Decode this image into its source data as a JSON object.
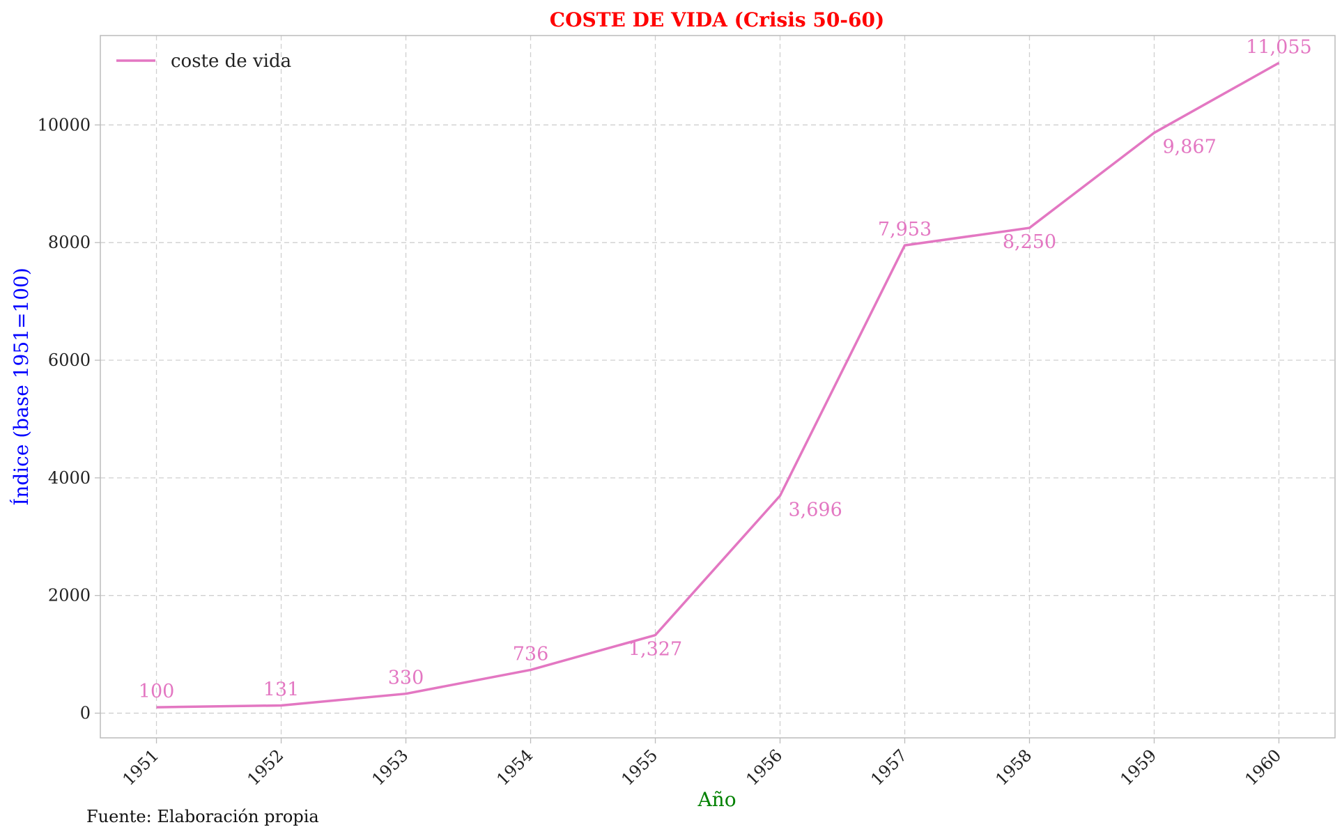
{
  "chart_data": {
    "type": "line",
    "title": "COSTE DE VIDA (Crisis 50-60)",
    "xlabel": "Año",
    "ylabel": "Índice (base 1951=100)",
    "categories": [
      "1951",
      "1952",
      "1953",
      "1954",
      "1955",
      "1956",
      "1957",
      "1958",
      "1959",
      "1960"
    ],
    "series": [
      {
        "name": "coste de vida",
        "values": [
          100,
          131,
          330,
          736,
          1327,
          3696,
          7953,
          8250,
          9867,
          11055
        ],
        "data_labels": [
          "100",
          "131",
          "330",
          "736",
          "1,327",
          "3,696",
          "7,953",
          "8,250",
          "9,867",
          "11,055"
        ],
        "color": "#e377c2"
      }
    ],
    "yticks": [
      0,
      2000,
      4000,
      6000,
      8000,
      10000
    ],
    "ylim": [
      -420,
      11520
    ],
    "xlim": [
      -0.45,
      9.45
    ],
    "grid": true,
    "legend_position": "top-left",
    "footnote": "Fuente: Elaboración propia",
    "colors": {
      "title": "#ff0000",
      "ylabel": "#0000ff",
      "xlabel": "#008000",
      "axes": "#bbbbbb"
    }
  }
}
